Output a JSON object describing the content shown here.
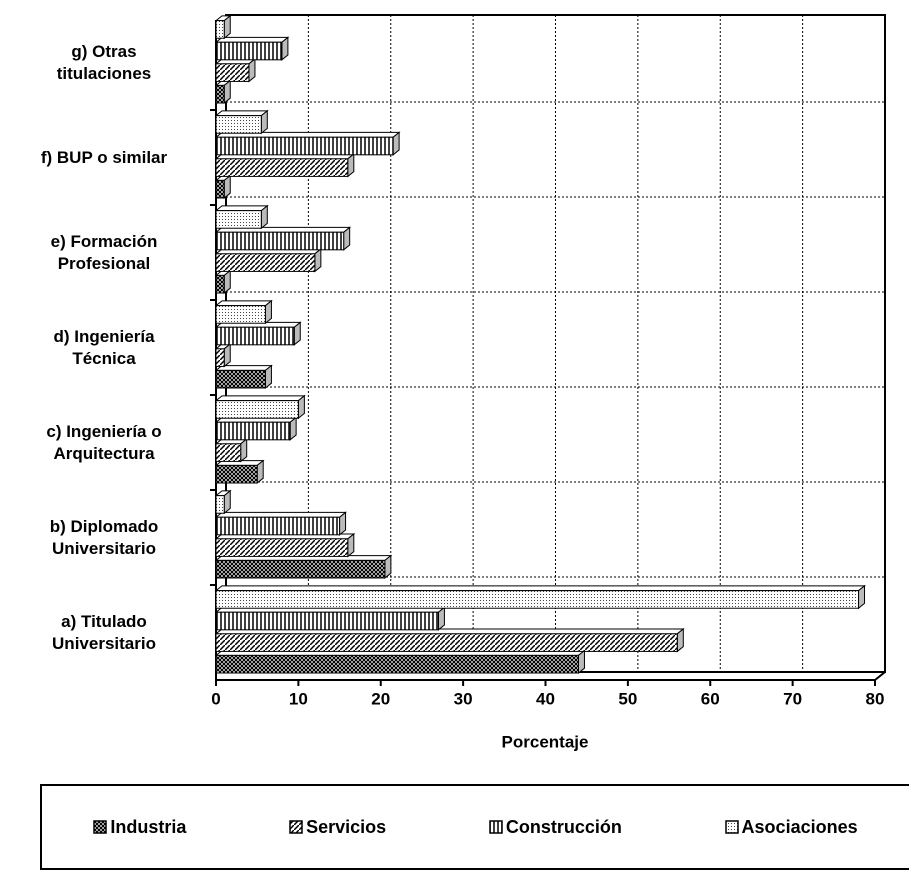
{
  "chart_data": {
    "type": "bar",
    "orientation": "horizontal",
    "x_label": "Porcentaje",
    "categories": [
      "a) Titulado\nUniversitario",
      "b) Diplomado\nUniversitario",
      "c) Ingeniería o\nArquitectura",
      "d) Ingeniería\nTécnica",
      "e) Formación\nProfesional",
      "f)  BUP o similar",
      "g) Otras\ntitulaciones"
    ],
    "series": [
      {
        "name": "Industria",
        "color": "#555555",
        "values": [
          44,
          20.5,
          5,
          6,
          1,
          1,
          1
        ]
      },
      {
        "name": "Servicios",
        "color": "#777777",
        "values": [
          56,
          16,
          3,
          1,
          12,
          16,
          4
        ]
      },
      {
        "name": "Construcción",
        "color": "#999999",
        "values": [
          27,
          15,
          9,
          9.5,
          15.5,
          21.5,
          8
        ]
      },
      {
        "name": "Asociaciones",
        "color": "#cccccc",
        "values": [
          78,
          1,
          10,
          6,
          5.5,
          5.5,
          1
        ]
      }
    ],
    "xlim": [
      0,
      80
    ],
    "xticks": [
      0,
      10,
      20,
      30,
      40,
      50,
      60,
      70,
      80
    ],
    "grid": true
  }
}
